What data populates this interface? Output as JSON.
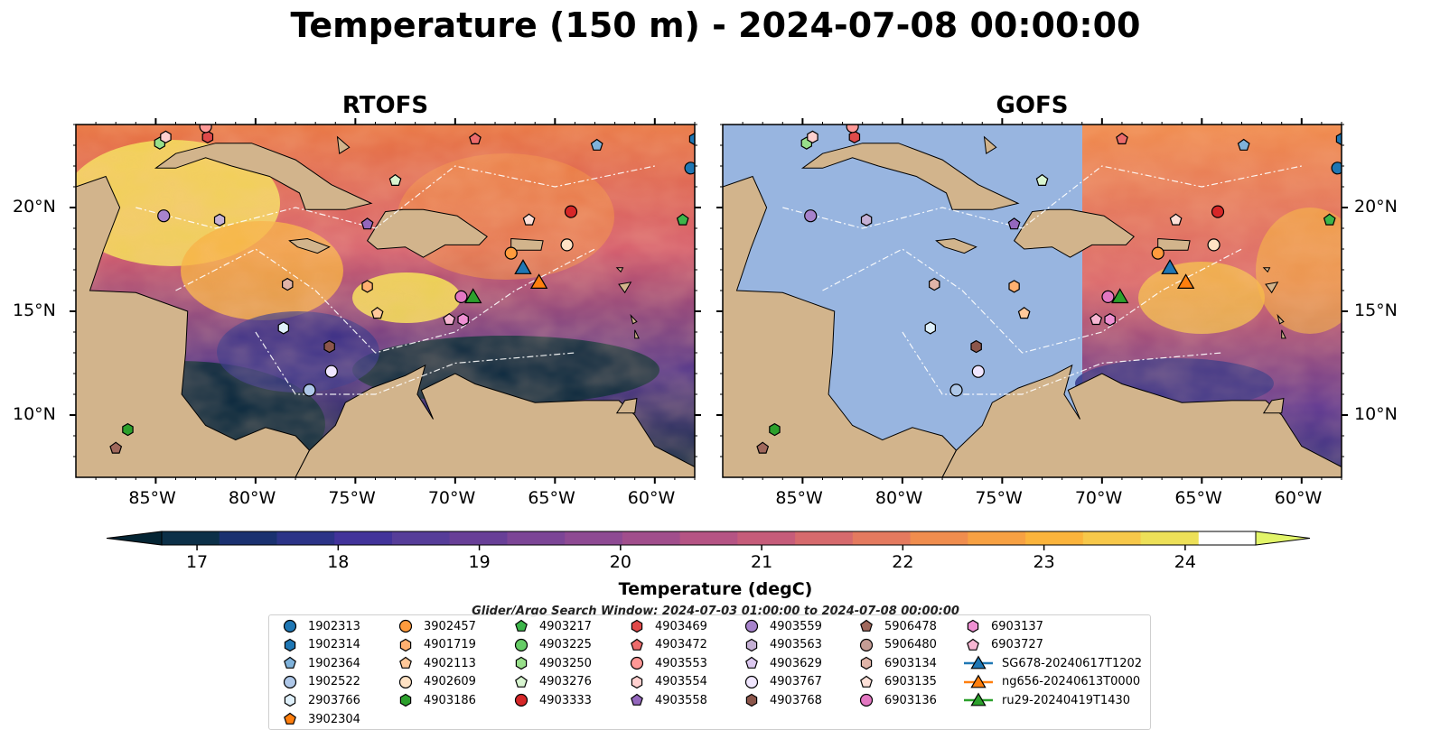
{
  "title": "Temperature (150 m) - 2024-07-08 00:00:00",
  "panels": [
    {
      "title": "RTOFS",
      "model_coverage": "full"
    },
    {
      "title": "GOFS",
      "model_coverage": "east of 71°W"
    }
  ],
  "map_extent": {
    "lon": [
      -89,
      -58
    ],
    "lat": [
      7,
      24
    ]
  },
  "lon_ticks": [
    "85°W",
    "80°W",
    "75°W",
    "70°W",
    "65°W",
    "60°W"
  ],
  "lat_ticks": [
    "20°N",
    "15°N",
    "10°N"
  ],
  "colorbar": {
    "title": "Temperature (degC)",
    "min": 16.75,
    "max": 24.5,
    "ticks": [
      "17",
      "18",
      "19",
      "20",
      "21",
      "22",
      "23",
      "24"
    ],
    "colors": [
      "#052534",
      "#0c3048",
      "#1a3170",
      "#2c3387",
      "#42339a",
      "#563d99",
      "#683f97",
      "#7c4596",
      "#8e4a93",
      "#a14e8c",
      "#b55484",
      "#c65c7a",
      "#d66a6d",
      "#e47a5f",
      "#f08d4e",
      "#f7a143",
      "#fbb43c",
      "#f7c84a",
      "#ede058",
      "#e2f569"
    ],
    "land": "#d2b48c",
    "ocean": "#98b5e0"
  },
  "search_window": "Glider/Argo Search Window: 2024-07-03 01:00:00 to 2024-07-08 00:00:00",
  "legend": [
    {
      "label": "1902313",
      "marker": "circle",
      "color": "#1f77b4"
    },
    {
      "label": "1902314",
      "marker": "hexagon",
      "color": "#1f77b4"
    },
    {
      "label": "1902364",
      "marker": "pentagon",
      "color": "#7fb2db"
    },
    {
      "label": "1902522",
      "marker": "circle",
      "color": "#aec7e8"
    },
    {
      "label": "2903766",
      "marker": "hexagon",
      "color": "#dff0fb"
    },
    {
      "label": "3902304",
      "marker": "pentagon",
      "color": "#ff7f0e"
    },
    {
      "label": "3902457",
      "marker": "circle",
      "color": "#ff9b3d"
    },
    {
      "label": "4901719",
      "marker": "hexagon",
      "color": "#ffb070"
    },
    {
      "label": "4902113",
      "marker": "pentagon",
      "color": "#ffc89a"
    },
    {
      "label": "4902609",
      "marker": "circle",
      "color": "#ffe2c4"
    },
    {
      "label": "4903186",
      "marker": "hexagon",
      "color": "#2ca02c"
    },
    {
      "label": "4903217",
      "marker": "pentagon",
      "color": "#3cb54a"
    },
    {
      "label": "4903225",
      "marker": "circle",
      "color": "#66cc66"
    },
    {
      "label": "4903250",
      "marker": "hexagon",
      "color": "#98df8a"
    },
    {
      "label": "4903276",
      "marker": "pentagon",
      "color": "#d8f5d0"
    },
    {
      "label": "4903333",
      "marker": "circle",
      "color": "#d62728"
    },
    {
      "label": "4903469",
      "marker": "hexagon",
      "color": "#e04a4a"
    },
    {
      "label": "4903472",
      "marker": "pentagon",
      "color": "#ec6b6b"
    },
    {
      "label": "4903553",
      "marker": "circle",
      "color": "#ff9896"
    },
    {
      "label": "4903554",
      "marker": "hexagon",
      "color": "#ffd0cf"
    },
    {
      "label": "4903558",
      "marker": "pentagon",
      "color": "#9467bd"
    },
    {
      "label": "4903559",
      "marker": "circle",
      "color": "#a783cc"
    },
    {
      "label": "4903563",
      "marker": "hexagon",
      "color": "#c5b0d5"
    },
    {
      "label": "4903629",
      "marker": "pentagon",
      "color": "#dcc8f0"
    },
    {
      "label": "4903767",
      "marker": "circle",
      "color": "#f0e6ff"
    },
    {
      "label": "4903768",
      "marker": "hexagon",
      "color": "#8c564b"
    },
    {
      "label": "5906478",
      "marker": "pentagon",
      "color": "#a0685c"
    },
    {
      "label": "5906480",
      "marker": "circle",
      "color": "#c49c94"
    },
    {
      "label": "6903134",
      "marker": "hexagon",
      "color": "#e0b4a8"
    },
    {
      "label": "6903135",
      "marker": "pentagon",
      "color": "#fde0d8"
    },
    {
      "label": "6903136",
      "marker": "circle",
      "color": "#e377c2"
    },
    {
      "label": "6903137",
      "marker": "hexagon",
      "color": "#ee90d2"
    },
    {
      "label": "6903727",
      "marker": "pentagon",
      "color": "#f7b6d2"
    },
    {
      "label": "SG678-20240617T1202",
      "marker": "triangle-line",
      "color": "#1f77b4"
    },
    {
      "label": "ng656-20240613T0000",
      "marker": "triangle-line",
      "color": "#ff7f0e"
    },
    {
      "label": "ru29-20240419T1430",
      "marker": "triangle-line",
      "color": "#2ca02c"
    }
  ],
  "platforms": [
    {
      "id": "1902313",
      "lon": -58.2,
      "lat": 21.9
    },
    {
      "id": "1902314",
      "lon": -58.0,
      "lat": 23.3
    },
    {
      "id": "1902364",
      "lon": -62.9,
      "lat": 23.0
    },
    {
      "id": "1902522",
      "lon": -77.3,
      "lat": 11.2
    },
    {
      "id": "2903766",
      "lon": -78.6,
      "lat": 14.2
    },
    {
      "id": "3902457",
      "lon": -67.2,
      "lat": 17.8
    },
    {
      "id": "4901719",
      "lon": -74.4,
      "lat": 16.2
    },
    {
      "id": "4902113",
      "lon": -73.9,
      "lat": 14.9
    },
    {
      "id": "4902609",
      "lon": -64.4,
      "lat": 18.2
    },
    {
      "id": "4903186",
      "lon": -86.4,
      "lat": 9.3
    },
    {
      "id": "4903217",
      "lon": -58.6,
      "lat": 19.4
    },
    {
      "id": "4903250",
      "lon": -84.8,
      "lat": 23.1
    },
    {
      "id": "4903276",
      "lon": -73.0,
      "lat": 21.3
    },
    {
      "id": "4903333",
      "lon": -64.2,
      "lat": 19.8
    },
    {
      "id": "4903469",
      "lon": -82.4,
      "lat": 23.4
    },
    {
      "id": "4903472",
      "lon": -69.0,
      "lat": 23.3
    },
    {
      "id": "4903553",
      "lon": -82.5,
      "lat": 23.9
    },
    {
      "id": "4903554",
      "lon": -84.5,
      "lat": 23.4
    },
    {
      "id": "4903558",
      "lon": -74.4,
      "lat": 19.2
    },
    {
      "id": "4903559",
      "lon": -84.6,
      "lat": 19.6
    },
    {
      "id": "4903563",
      "lon": -81.8,
      "lat": 19.4
    },
    {
      "id": "4903767",
      "lon": -76.2,
      "lat": 12.1
    },
    {
      "id": "4903768",
      "lon": -76.3,
      "lat": 13.3
    },
    {
      "id": "5906478",
      "lon": -87.0,
      "lat": 8.4
    },
    {
      "id": "6903134",
      "lon": -78.4,
      "lat": 16.3
    },
    {
      "id": "6903135",
      "lon": -66.3,
      "lat": 19.4
    },
    {
      "id": "6903136",
      "lon": -69.7,
      "lat": 15.7
    },
    {
      "id": "6903137",
      "lon": -69.6,
      "lat": 14.6
    },
    {
      "id": "6903727",
      "lon": -70.3,
      "lat": 14.6
    },
    {
      "id": "SG678-20240617T1202",
      "lon": -66.6,
      "lat": 17.1
    },
    {
      "id": "ng656-20240613T0000",
      "lon": -65.8,
      "lat": 16.4
    },
    {
      "id": "ru29-20240419T1430",
      "lon": -69.1,
      "lat": 15.7
    }
  ]
}
